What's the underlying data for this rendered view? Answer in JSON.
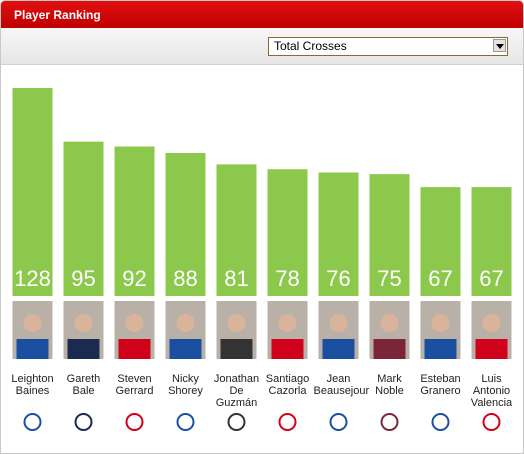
{
  "chart_data": {
    "type": "bar",
    "title": "Player Ranking",
    "selected_metric": "Total Crosses",
    "categories": [
      "Leighton Baines",
      "Gareth Bale",
      "Steven Gerrard",
      "Nicky Shorey",
      "Jonathan De Guzmán",
      "Santiago Cazorla",
      "Jean Beausejour",
      "Mark Noble",
      "Esteban Granero",
      "Luis Antonio Valencia"
    ],
    "values": [
      128,
      95,
      92,
      88,
      81,
      78,
      76,
      75,
      67,
      67
    ],
    "color": "#8cc84b"
  }
}
